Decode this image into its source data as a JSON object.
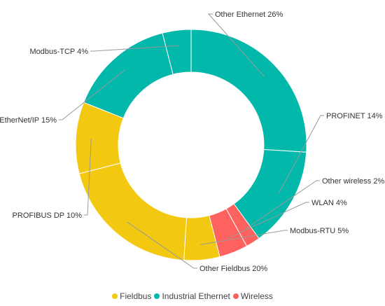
{
  "chart_data": {
    "type": "pie",
    "donut": true,
    "title": "",
    "legend_position": "bottom-center",
    "legend": [
      {
        "name": "Fieldbus",
        "color": "#F2C811"
      },
      {
        "name": "Industrial Ethernet",
        "color": "#01B8AA"
      },
      {
        "name": "Wireless",
        "color": "#FD625E"
      }
    ],
    "slices": [
      {
        "label": "Other Ethernet 26%",
        "value": 26,
        "group": "Industrial Ethernet"
      },
      {
        "label": "PROFINET 14%",
        "value": 14,
        "group": "Industrial Ethernet"
      },
      {
        "label": "Other wireless 2%",
        "value": 2,
        "group": "Wireless"
      },
      {
        "label": "WLAN 4%",
        "value": 4,
        "group": "Wireless"
      },
      {
        "label": "Modbus-RTU 5%",
        "value": 5,
        "group": "Fieldbus"
      },
      {
        "label": "Other Fieldbus 20%",
        "value": 20,
        "group": "Fieldbus"
      },
      {
        "label": "PROFIBUS DP 10%",
        "value": 10,
        "group": "Fieldbus"
      },
      {
        "label": "EtherNet/IP 15%",
        "value": 15,
        "group": "Industrial Ethernet"
      },
      {
        "label": "Modbus-TCP 4%",
        "value": 4,
        "group": "Industrial Ethernet"
      }
    ]
  }
}
